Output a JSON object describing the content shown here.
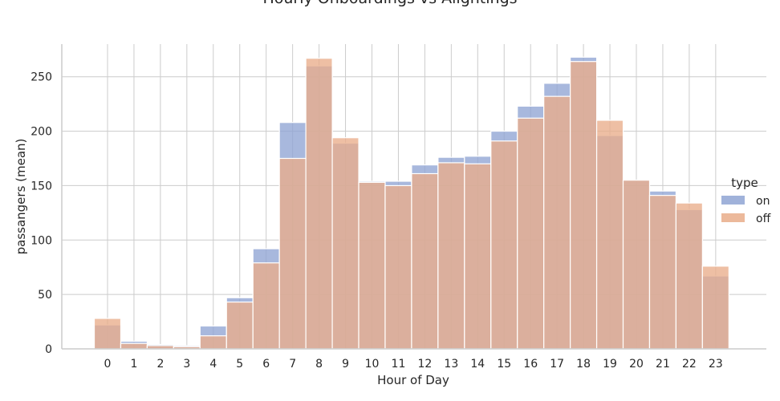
{
  "chart_data": {
    "type": "bar",
    "title": "Hourly Onboardings vs Alightings",
    "xlabel": "Hour of Day",
    "ylabel": "passangers (mean)",
    "categories": [
      "0",
      "1",
      "2",
      "3",
      "4",
      "5",
      "6",
      "7",
      "8",
      "9",
      "10",
      "11",
      "12",
      "13",
      "14",
      "15",
      "16",
      "17",
      "18",
      "19",
      "20",
      "21",
      "22",
      "23"
    ],
    "series": [
      {
        "name": "on",
        "color": "#8fa4d4",
        "values": [
          22,
          7,
          4,
          3,
          21,
          47,
          92,
          208,
          260,
          189,
          154,
          154,
          169,
          176,
          177,
          200,
          223,
          244,
          268,
          196,
          155,
          145,
          128,
          67
        ]
      },
      {
        "name": "off",
        "color": "#e9ad8a",
        "values": [
          28,
          5,
          3,
          2,
          12,
          43,
          79,
          175,
          267,
          194,
          153,
          150,
          161,
          171,
          170,
          191,
          212,
          232,
          264,
          210,
          155,
          141,
          134,
          76
        ]
      }
    ],
    "ylim": [
      0,
      280
    ],
    "yticks": [
      0,
      50,
      100,
      150,
      200,
      250
    ],
    "grid": true,
    "legend": {
      "title": "type",
      "placement": "right"
    }
  }
}
